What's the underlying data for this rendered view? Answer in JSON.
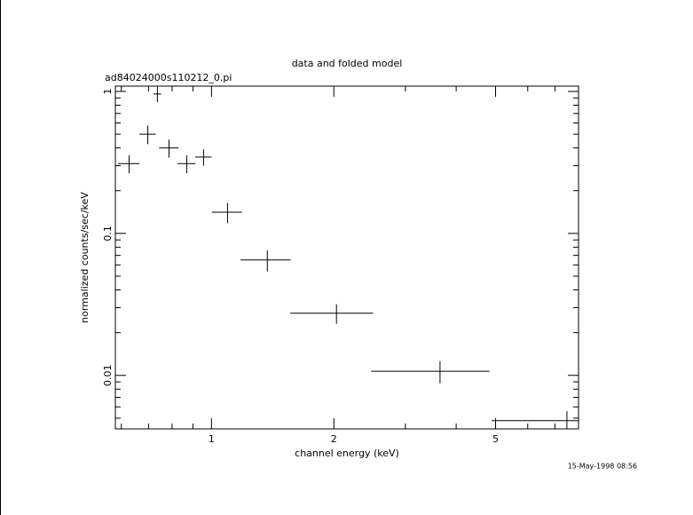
{
  "chart_data": {
    "type": "errorcross",
    "title": "data and folded model",
    "subtitle": "ad84024000s110212_0.pi",
    "x_label": "channel energy (keV)",
    "y_label": "normalized counts/sec/keV",
    "footer": "15-May-1998 08:56",
    "x": [
      0.627,
      0.697,
      0.736,
      0.786,
      0.869,
      0.956,
      1.095,
      1.372,
      2.03,
      3.65,
      7.49
    ],
    "xerr": [
      0.038,
      0.032,
      0.016,
      0.043,
      0.044,
      0.044,
      0.093,
      0.193,
      0.468,
      1.18,
      2.6
    ],
    "values": [
      0.31,
      0.5,
      0.96,
      0.4,
      0.31,
      0.345,
      0.141,
      0.065,
      0.0274,
      0.0107,
      0.0048
    ],
    "yerr": [
      0.045,
      0.075,
      0.12,
      0.058,
      0.045,
      0.045,
      0.023,
      0.011,
      0.0043,
      0.0019,
      0.0008
    ],
    "color": "#000000",
    "xlog": true,
    "ylog": true,
    "xlim": [
      0.58,
      8
    ],
    "ylim": [
      0.0042,
      1.09
    ],
    "xticks": [
      1,
      2,
      5
    ],
    "yticks": [
      0.01,
      0.1,
      1
    ],
    "xminor_ticks": [
      0.6,
      0.7,
      0.8,
      0.9,
      3,
      4,
      6,
      7,
      8
    ],
    "yminor_ticks": [
      0.005,
      0.006,
      0.007,
      0.008,
      0.009,
      0.02,
      0.03,
      0.04,
      0.05,
      0.06,
      0.07,
      0.08,
      0.09,
      0.2,
      0.3,
      0.4,
      0.5,
      0.6,
      0.7,
      0.8,
      0.9
    ]
  }
}
